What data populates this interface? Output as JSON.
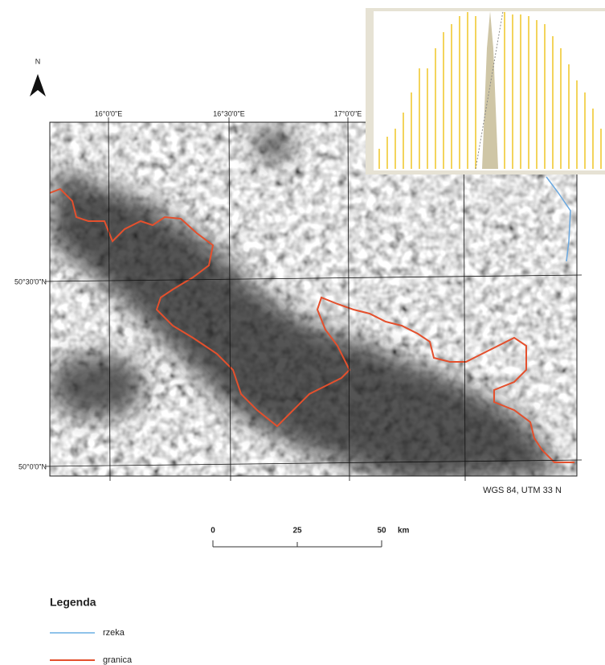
{
  "north_arrow": {
    "label": "N"
  },
  "graticule": {
    "longitudes": [
      "16°0'0\"E",
      "16°30'0\"E",
      "17°0'0\"E"
    ],
    "latitudes": [
      "50°30'0\"N",
      "50°0'0\"N"
    ]
  },
  "projection": "WGS 84, UTM 33 N",
  "scale_bar": {
    "labels": [
      "0",
      "25",
      "50"
    ],
    "unit": "km"
  },
  "legend": {
    "title": "Legenda",
    "items": [
      "rzeka",
      "granica"
    ]
  }
}
